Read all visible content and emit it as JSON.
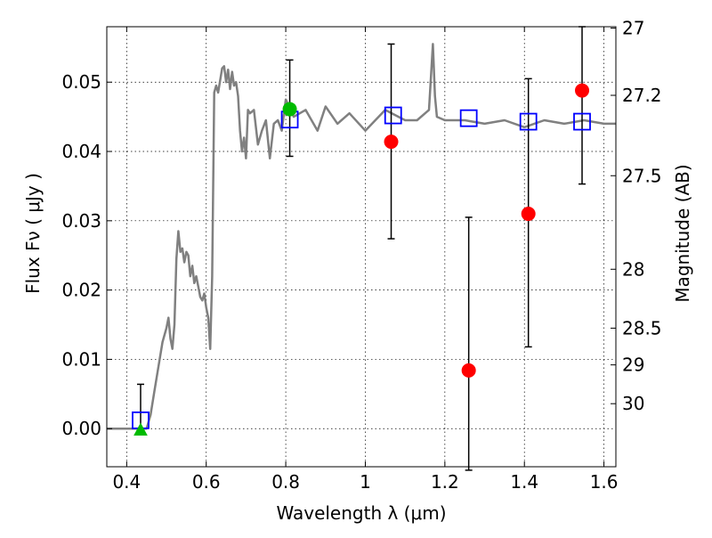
{
  "chart_data": {
    "type": "scatter",
    "xlabel": "Wavelength  λ (μm)",
    "ylabel_left": "Flux  Fν  ( μJy )",
    "ylabel_right": "Magnitude (AB)",
    "xlim": [
      0.35,
      1.63
    ],
    "ylim": [
      -0.0055,
      0.058
    ],
    "grid": true,
    "x_ticks": [
      0.4,
      0.6,
      0.8,
      1.0,
      1.2,
      1.4,
      1.6
    ],
    "x_tick_labels": [
      "0.4",
      "0.6",
      "0.8",
      "1",
      "1.2",
      "1.4",
      "1.6"
    ],
    "y_ticks": [
      0.0,
      0.01,
      0.02,
      0.03,
      0.04,
      0.05
    ],
    "y_tick_labels": [
      "0.00",
      "0.01",
      "0.02",
      "0.03",
      "0.04",
      "0.05"
    ],
    "right_axis_ticks": [
      {
        "label": "27",
        "flux": 0.0578
      },
      {
        "label": "27.2",
        "flux": 0.0481
      },
      {
        "label": "27.5",
        "flux": 0.0365
      },
      {
        "label": "28",
        "flux": 0.023
      },
      {
        "label": "28.5",
        "flux": 0.0145
      },
      {
        "label": "29",
        "flux": 0.0092
      },
      {
        "label": "30",
        "flux": 0.0036
      }
    ],
    "colors": {
      "template": "#808080",
      "model_squares": "#0000ff",
      "observed": "#ff0000",
      "upper_limit": "#00bb00",
      "errorbar": "#000000"
    },
    "model_template": {
      "name": "",
      "x": [
        0.35,
        0.45,
        0.46,
        0.47,
        0.48,
        0.49,
        0.5,
        0.505,
        0.51,
        0.515,
        0.52,
        0.525,
        0.53,
        0.535,
        0.54,
        0.545,
        0.55,
        0.555,
        0.56,
        0.565,
        0.57,
        0.575,
        0.58,
        0.585,
        0.59,
        0.595,
        0.6,
        0.605,
        0.61,
        0.615,
        0.62,
        0.625,
        0.63,
        0.64,
        0.645,
        0.65,
        0.655,
        0.66,
        0.665,
        0.67,
        0.675,
        0.68,
        0.685,
        0.69,
        0.695,
        0.7,
        0.705,
        0.71,
        0.72,
        0.73,
        0.74,
        0.75,
        0.76,
        0.77,
        0.78,
        0.79,
        0.8,
        0.82,
        0.85,
        0.88,
        0.9,
        0.93,
        0.96,
        1.0,
        1.05,
        1.1,
        1.13,
        1.16,
        1.17,
        1.175,
        1.18,
        1.2,
        1.25,
        1.3,
        1.35,
        1.4,
        1.45,
        1.5,
        1.55,
        1.6,
        1.63
      ],
      "y": [
        0.0,
        0.0,
        0.002,
        0.0055,
        0.009,
        0.0125,
        0.0145,
        0.016,
        0.013,
        0.0115,
        0.015,
        0.0245,
        0.0285,
        0.0255,
        0.026,
        0.024,
        0.0255,
        0.025,
        0.022,
        0.0235,
        0.021,
        0.022,
        0.0205,
        0.019,
        0.0185,
        0.0195,
        0.0175,
        0.016,
        0.0115,
        0.022,
        0.0485,
        0.0495,
        0.0485,
        0.052,
        0.0523,
        0.05,
        0.0518,
        0.049,
        0.0515,
        0.0495,
        0.05,
        0.048,
        0.043,
        0.04,
        0.042,
        0.039,
        0.046,
        0.0455,
        0.046,
        0.041,
        0.043,
        0.0445,
        0.039,
        0.044,
        0.0445,
        0.043,
        0.0475,
        0.045,
        0.046,
        0.043,
        0.0465,
        0.044,
        0.0455,
        0.043,
        0.046,
        0.0445,
        0.0445,
        0.046,
        0.0555,
        0.048,
        0.045,
        0.0445,
        0.0445,
        0.044,
        0.0445,
        0.0435,
        0.0445,
        0.044,
        0.0445,
        0.044,
        0.044
      ]
    },
    "model_photometry": {
      "name": "",
      "marker": "square",
      "x": [
        0.435,
        0.81,
        1.07,
        1.26,
        1.41,
        1.545
      ],
      "y": [
        0.0012,
        0.0446,
        0.0452,
        0.0448,
        0.0443,
        0.0443
      ]
    },
    "observed_detections": {
      "name": "",
      "marker": "circle",
      "points": [
        {
          "x": 1.065,
          "y": 0.0414,
          "yerr_low": 0.0274,
          "yerr_high": 0.0555
        },
        {
          "x": 1.26,
          "y": 0.0084,
          "yerr_low": -0.006,
          "yerr_high": 0.0305
        },
        {
          "x": 1.41,
          "y": 0.031,
          "yerr_low": 0.0118,
          "yerr_high": 0.0505
        },
        {
          "x": 1.545,
          "y": 0.0488,
          "yerr_low": 0.0353,
          "yerr_high": 0.058
        }
      ]
    },
    "green_points": [
      {
        "x": 0.81,
        "y": 0.0461,
        "marker": "circle",
        "yerr_low": 0.0393,
        "yerr_high": 0.0532
      },
      {
        "x": 0.435,
        "y": -0.0003,
        "marker": "triangle",
        "yerr_low": -0.0003,
        "yerr_high": 0.0064
      }
    ]
  }
}
